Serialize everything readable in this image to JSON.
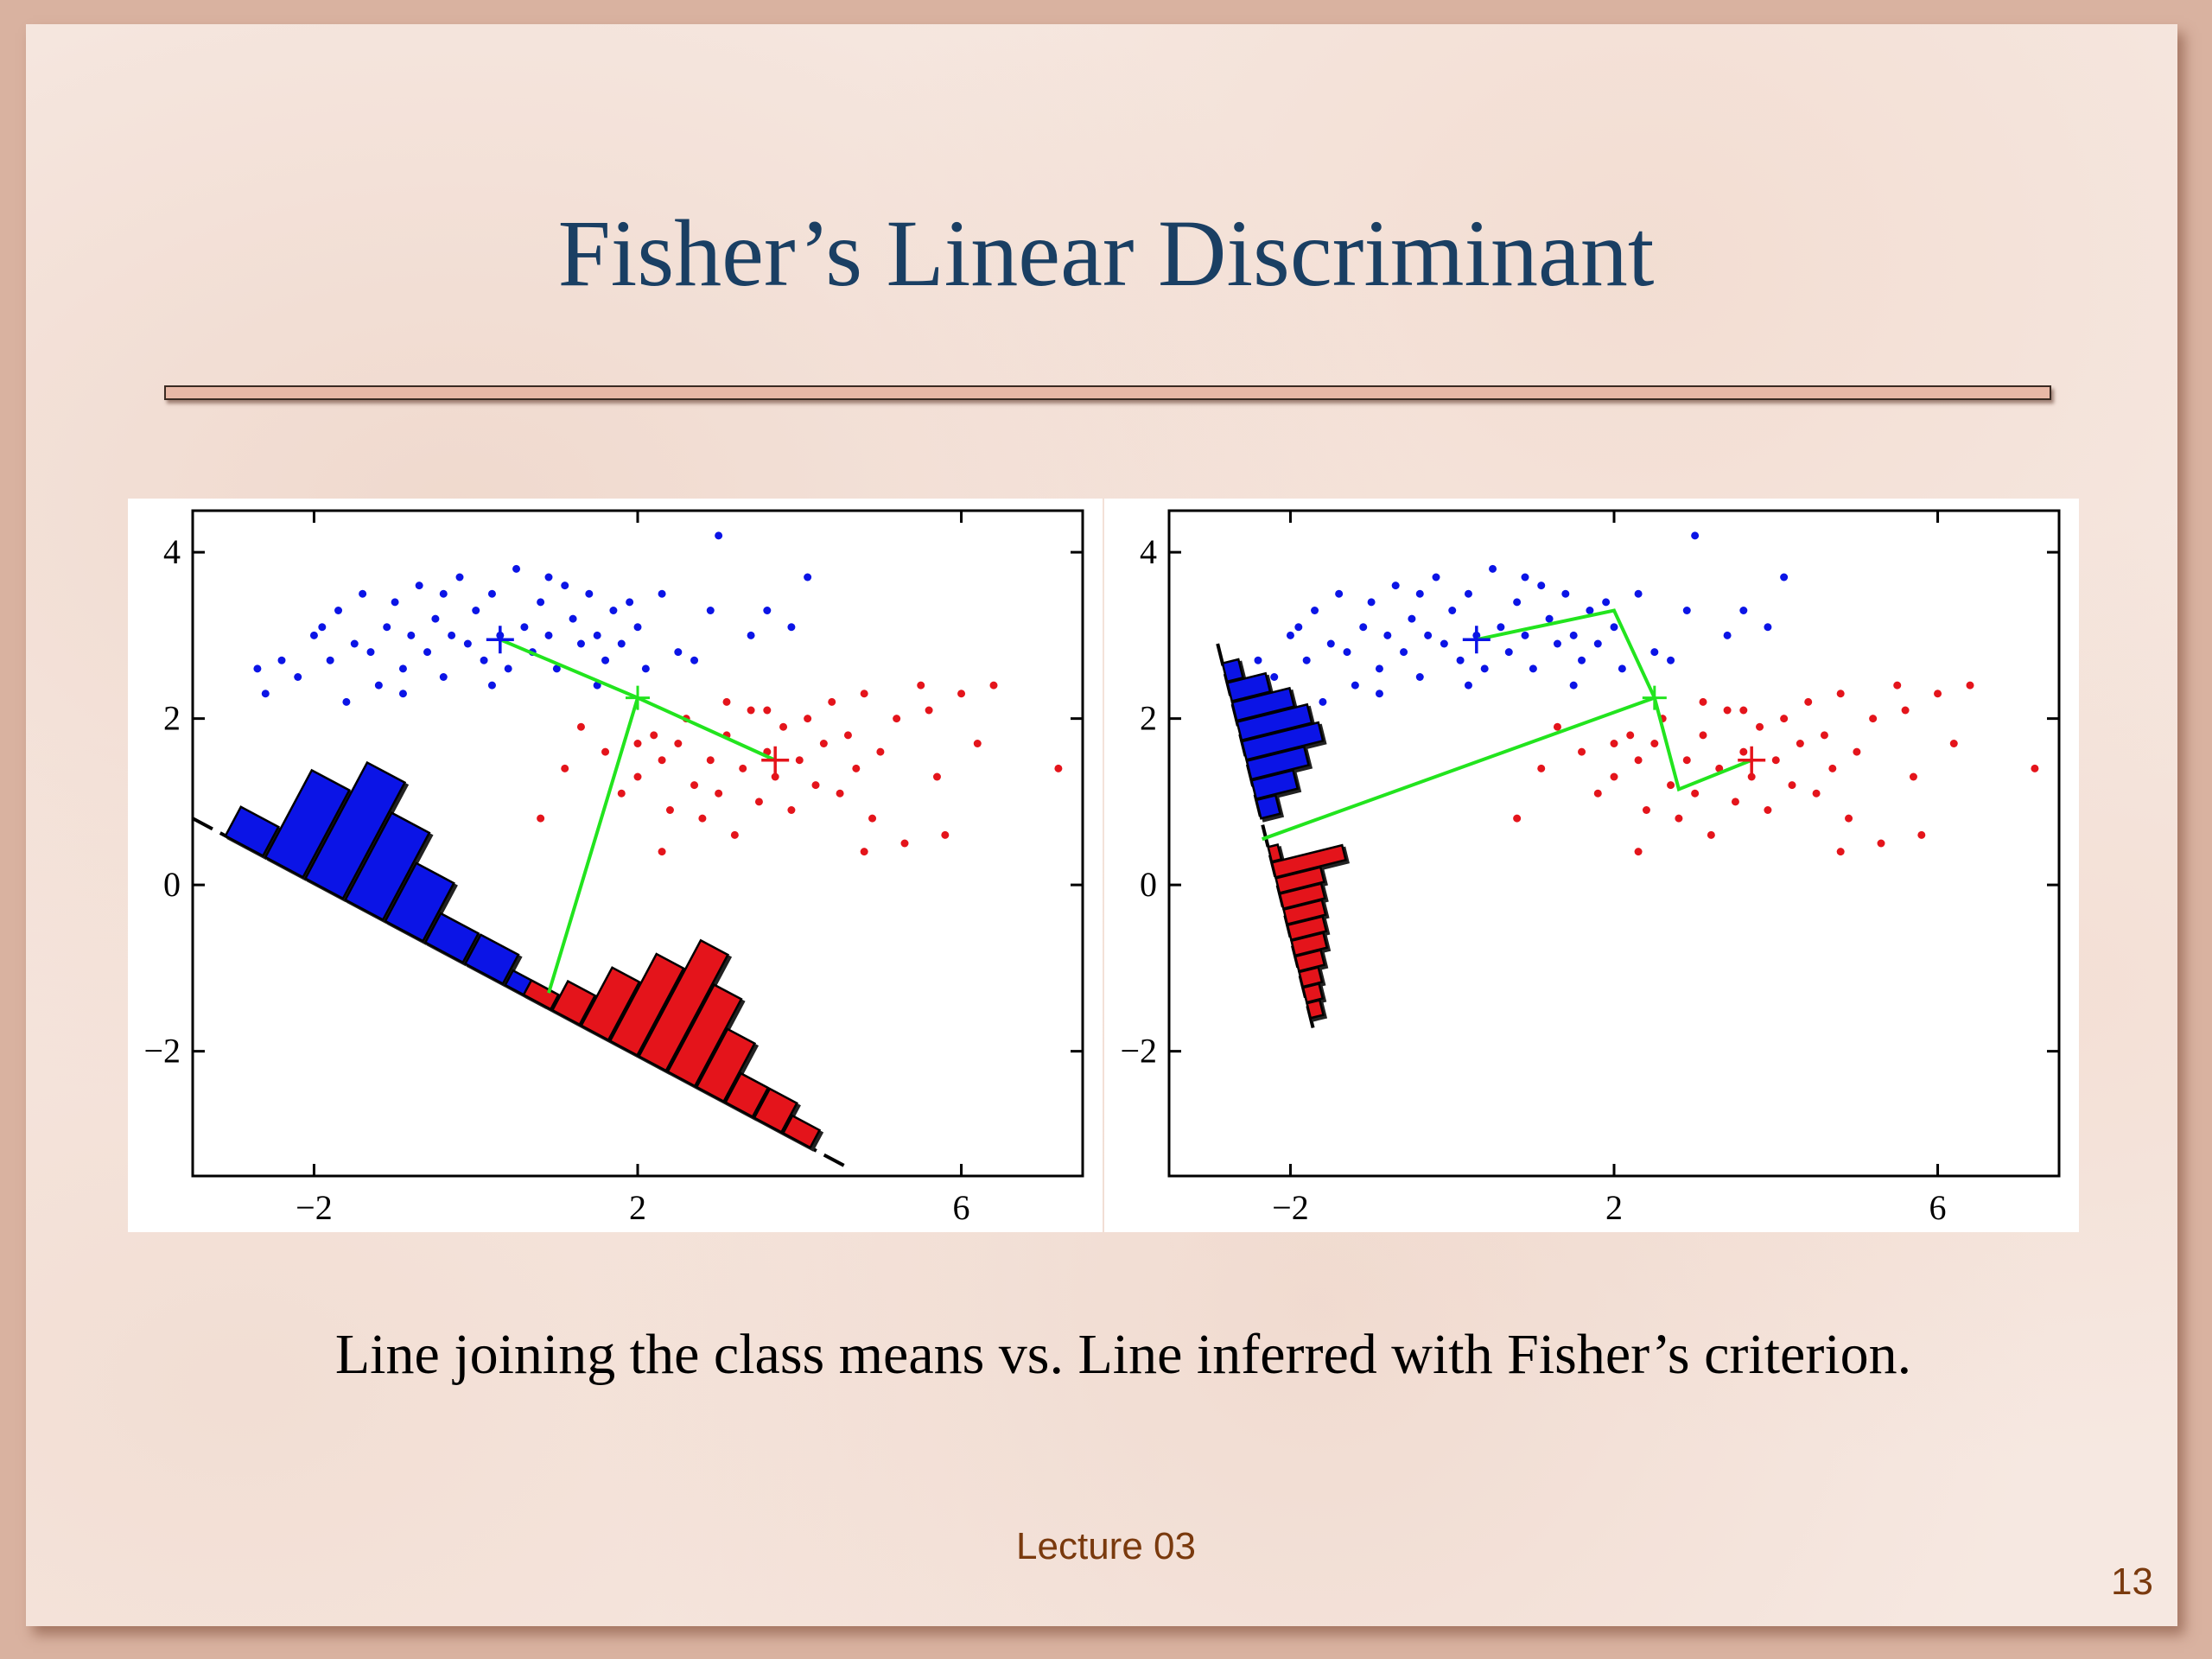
{
  "slide": {
    "title": "Fisher’s Linear Discriminant",
    "caption": "Line joining the class means vs. Line inferred with Fisher’s criterion.",
    "footer": "Lecture 03",
    "page_number": "13"
  },
  "colors": {
    "class1": "#0b14e6",
    "class2": "#e4141b",
    "projection": "#22e41e",
    "title": "#1a3f63"
  },
  "chart_data": [
    {
      "type": "scatter",
      "title": "",
      "xlabel": "",
      "ylabel": "",
      "xlim": [
        -3.5,
        7.5
      ],
      "ylim": [
        -3.5,
        4.5
      ],
      "xticks": [
        "−2",
        "2",
        "6"
      ],
      "xtick_values": [
        -2,
        2,
        6
      ],
      "yticks": [
        "4",
        "2",
        "0",
        "−2"
      ],
      "ytick_values": [
        4,
        2,
        0,
        -2
      ],
      "grid": false,
      "series": [
        {
          "points": [
            [
              -2.7,
              2.6
            ],
            [
              -2.6,
              2.3
            ],
            [
              -2.2,
              2.5
            ],
            [
              -2.0,
              3.0
            ],
            [
              -1.8,
              2.7
            ],
            [
              -1.7,
              3.3
            ],
            [
              -1.5,
              2.9
            ],
            [
              -1.4,
              3.5
            ],
            [
              -1.3,
              2.8
            ],
            [
              -1.2,
              2.4
            ],
            [
              -1.1,
              3.1
            ],
            [
              -1.0,
              3.4
            ],
            [
              -0.9,
              2.6
            ],
            [
              -0.8,
              3.0
            ],
            [
              -0.7,
              3.6
            ],
            [
              -0.6,
              2.8
            ],
            [
              -0.5,
              3.2
            ],
            [
              -0.4,
              2.5
            ],
            [
              -0.3,
              3.0
            ],
            [
              -0.2,
              3.7
            ],
            [
              -0.1,
              2.9
            ],
            [
              0.0,
              3.3
            ],
            [
              0.1,
              2.7
            ],
            [
              0.2,
              3.5
            ],
            [
              0.3,
              3.0
            ],
            [
              0.4,
              2.6
            ],
            [
              0.5,
              3.8
            ],
            [
              0.6,
              3.1
            ],
            [
              0.7,
              2.8
            ],
            [
              0.8,
              3.4
            ],
            [
              0.9,
              3.0
            ],
            [
              1.0,
              2.6
            ],
            [
              1.1,
              3.6
            ],
            [
              1.2,
              3.2
            ],
            [
              1.3,
              2.9
            ],
            [
              1.4,
              3.5
            ],
            [
              1.5,
              3.0
            ],
            [
              1.6,
              2.7
            ],
            [
              1.7,
              3.3
            ],
            [
              1.8,
              2.9
            ],
            [
              2.0,
              3.1
            ],
            [
              2.1,
              2.6
            ],
            [
              2.3,
              3.5
            ],
            [
              2.5,
              2.8
            ],
            [
              2.7,
              2.7
            ],
            [
              2.9,
              3.3
            ],
            [
              3.0,
              4.2
            ],
            [
              3.4,
              3.0
            ],
            [
              3.6,
              3.3
            ],
            [
              3.9,
              3.1
            ],
            [
              4.1,
              3.7
            ],
            [
              -1.6,
              2.2
            ],
            [
              -0.9,
              2.3
            ],
            [
              0.2,
              2.4
            ],
            [
              1.5,
              2.4
            ],
            [
              -2.4,
              2.7
            ],
            [
              -1.9,
              3.1
            ],
            [
              -0.4,
              3.5
            ],
            [
              0.9,
              3.7
            ],
            [
              1.9,
              3.4
            ]
          ]
        },
        {
          "points": [
            [
              0.8,
              0.8
            ],
            [
              1.1,
              1.4
            ],
            [
              1.3,
              1.9
            ],
            [
              1.6,
              1.6
            ],
            [
              1.8,
              1.1
            ],
            [
              2.0,
              1.3
            ],
            [
              2.2,
              1.8
            ],
            [
              2.3,
              1.5
            ],
            [
              2.4,
              0.9
            ],
            [
              2.5,
              1.7
            ],
            [
              2.6,
              2.0
            ],
            [
              2.7,
              1.2
            ],
            [
              2.8,
              0.8
            ],
            [
              2.9,
              1.5
            ],
            [
              3.0,
              1.1
            ],
            [
              3.1,
              1.8
            ],
            [
              3.2,
              0.6
            ],
            [
              3.3,
              1.4
            ],
            [
              3.4,
              2.1
            ],
            [
              3.5,
              1.0
            ],
            [
              3.6,
              1.6
            ],
            [
              3.7,
              1.3
            ],
            [
              3.8,
              1.9
            ],
            [
              3.9,
              0.9
            ],
            [
              4.0,
              1.5
            ],
            [
              4.1,
              2.0
            ],
            [
              4.2,
              1.2
            ],
            [
              4.3,
              1.7
            ],
            [
              4.4,
              2.2
            ],
            [
              4.5,
              1.1
            ],
            [
              4.6,
              1.8
            ],
            [
              4.7,
              1.4
            ],
            [
              4.8,
              2.3
            ],
            [
              4.9,
              0.8
            ],
            [
              5.0,
              1.6
            ],
            [
              5.2,
              2.0
            ],
            [
              5.3,
              0.5
            ],
            [
              5.5,
              2.4
            ],
            [
              5.7,
              1.3
            ],
            [
              5.8,
              0.6
            ],
            [
              6.0,
              2.3
            ],
            [
              6.2,
              1.7
            ],
            [
              6.4,
              2.4
            ],
            [
              7.2,
              1.4
            ],
            [
              2.3,
              0.4
            ],
            [
              3.1,
              2.2
            ],
            [
              4.8,
              0.4
            ],
            [
              5.6,
              2.1
            ],
            [
              2.0,
              1.7
            ],
            [
              3.6,
              2.1
            ]
          ]
        }
      ],
      "means": [
        [
          0.3,
          2.95
        ],
        [
          3.7,
          1.5
        ]
      ],
      "projection_line": [
        [
          -3.5,
          0.8
        ],
        [
          4.6,
          -3.4
        ]
      ],
      "projection_segments": [
        [
          [
            0.3,
            2.95
          ],
          [
            2.0,
            2.25
          ],
          [
            3.7,
            1.5
          ]
        ],
        [
          [
            2.0,
            2.25
          ],
          [
            0.9,
            -1.3
          ]
        ]
      ],
      "histograms": [
        {
          "series": 0,
          "counts": [
            1,
            3,
            4,
            3,
            2,
            1,
            1,
            0.5
          ],
          "start": 0.05,
          "step": 0.061
        },
        {
          "series": 1,
          "counts": [
            0.5,
            1,
            2,
            3,
            4,
            3,
            2,
            1,
            1,
            0.6
          ],
          "start": 0.505,
          "step": 0.044
        }
      ]
    },
    {
      "type": "scatter",
      "title": "",
      "xlabel": "",
      "ylabel": "",
      "xlim": [
        -3.5,
        7.5
      ],
      "ylim": [
        -3.5,
        4.5
      ],
      "xticks": [
        "−2",
        "2",
        "6"
      ],
      "xtick_values": [
        -2,
        2,
        6
      ],
      "yticks": [
        "4",
        "2",
        "0",
        "−2"
      ],
      "ytick_values": [
        4,
        2,
        0,
        -2
      ],
      "grid": false,
      "series": [
        {
          "points": [
            [
              -2.7,
              2.6
            ],
            [
              -2.6,
              2.3
            ],
            [
              -2.2,
              2.5
            ],
            [
              -2.0,
              3.0
            ],
            [
              -1.8,
              2.7
            ],
            [
              -1.7,
              3.3
            ],
            [
              -1.5,
              2.9
            ],
            [
              -1.4,
              3.5
            ],
            [
              -1.3,
              2.8
            ],
            [
              -1.2,
              2.4
            ],
            [
              -1.1,
              3.1
            ],
            [
              -1.0,
              3.4
            ],
            [
              -0.9,
              2.6
            ],
            [
              -0.8,
              3.0
            ],
            [
              -0.7,
              3.6
            ],
            [
              -0.6,
              2.8
            ],
            [
              -0.5,
              3.2
            ],
            [
              -0.4,
              2.5
            ],
            [
              -0.3,
              3.0
            ],
            [
              -0.2,
              3.7
            ],
            [
              -0.1,
              2.9
            ],
            [
              0.0,
              3.3
            ],
            [
              0.1,
              2.7
            ],
            [
              0.2,
              3.5
            ],
            [
              0.3,
              3.0
            ],
            [
              0.4,
              2.6
            ],
            [
              0.5,
              3.8
            ],
            [
              0.6,
              3.1
            ],
            [
              0.7,
              2.8
            ],
            [
              0.8,
              3.4
            ],
            [
              0.9,
              3.0
            ],
            [
              1.0,
              2.6
            ],
            [
              1.1,
              3.6
            ],
            [
              1.2,
              3.2
            ],
            [
              1.3,
              2.9
            ],
            [
              1.4,
              3.5
            ],
            [
              1.5,
              3.0
            ],
            [
              1.6,
              2.7
            ],
            [
              1.7,
              3.3
            ],
            [
              1.8,
              2.9
            ],
            [
              2.0,
              3.1
            ],
            [
              2.1,
              2.6
            ],
            [
              2.3,
              3.5
            ],
            [
              2.5,
              2.8
            ],
            [
              2.7,
              2.7
            ],
            [
              2.9,
              3.3
            ],
            [
              3.0,
              4.2
            ],
            [
              3.4,
              3.0
            ],
            [
              3.6,
              3.3
            ],
            [
              3.9,
              3.1
            ],
            [
              4.1,
              3.7
            ],
            [
              -1.6,
              2.2
            ],
            [
              -0.9,
              2.3
            ],
            [
              0.2,
              2.4
            ],
            [
              1.5,
              2.4
            ],
            [
              -2.4,
              2.7
            ],
            [
              -1.9,
              3.1
            ],
            [
              -0.4,
              3.5
            ],
            [
              0.9,
              3.7
            ],
            [
              1.9,
              3.4
            ]
          ]
        },
        {
          "points": [
            [
              0.8,
              0.8
            ],
            [
              1.1,
              1.4
            ],
            [
              1.3,
              1.9
            ],
            [
              1.6,
              1.6
            ],
            [
              1.8,
              1.1
            ],
            [
              2.0,
              1.3
            ],
            [
              2.2,
              1.8
            ],
            [
              2.3,
              1.5
            ],
            [
              2.4,
              0.9
            ],
            [
              2.5,
              1.7
            ],
            [
              2.6,
              2.0
            ],
            [
              2.7,
              1.2
            ],
            [
              2.8,
              0.8
            ],
            [
              2.9,
              1.5
            ],
            [
              3.0,
              1.1
            ],
            [
              3.1,
              1.8
            ],
            [
              3.2,
              0.6
            ],
            [
              3.3,
              1.4
            ],
            [
              3.4,
              2.1
            ],
            [
              3.5,
              1.0
            ],
            [
              3.6,
              1.6
            ],
            [
              3.7,
              1.3
            ],
            [
              3.8,
              1.9
            ],
            [
              3.9,
              0.9
            ],
            [
              4.0,
              1.5
            ],
            [
              4.1,
              2.0
            ],
            [
              4.2,
              1.2
            ],
            [
              4.3,
              1.7
            ],
            [
              4.4,
              2.2
            ],
            [
              4.5,
              1.1
            ],
            [
              4.6,
              1.8
            ],
            [
              4.7,
              1.4
            ],
            [
              4.8,
              2.3
            ],
            [
              4.9,
              0.8
            ],
            [
              5.0,
              1.6
            ],
            [
              5.2,
              2.0
            ],
            [
              5.3,
              0.5
            ],
            [
              5.5,
              2.4
            ],
            [
              5.7,
              1.3
            ],
            [
              5.8,
              0.6
            ],
            [
              6.0,
              2.3
            ],
            [
              6.2,
              1.7
            ],
            [
              6.4,
              2.4
            ],
            [
              7.2,
              1.4
            ],
            [
              2.3,
              0.4
            ],
            [
              3.1,
              2.2
            ],
            [
              4.8,
              0.4
            ],
            [
              5.6,
              2.1
            ],
            [
              2.0,
              1.7
            ],
            [
              3.6,
              2.1
            ]
          ]
        }
      ],
      "means": [
        [
          0.3,
          2.95
        ],
        [
          3.7,
          1.5
        ]
      ],
      "projection_line": [
        [
          -2.9,
          2.9
        ],
        [
          -1.7,
          -1.8
        ]
      ],
      "projection_segments": [
        [
          [
            0.3,
            2.95
          ],
          [
            2.0,
            3.3
          ],
          [
            2.5,
            2.25
          ],
          [
            2.8,
            1.15
          ],
          [
            3.7,
            1.5
          ]
        ],
        [
          [
            2.5,
            2.25
          ],
          [
            -2.35,
            0.55
          ]
        ]
      ],
      "histograms": [
        {
          "series": 0,
          "counts": [
            0.5,
            1.2,
            1.8,
            2.2,
            2.4,
            1.8,
            1.3,
            0.6
          ],
          "start": 0.05,
          "step": 0.05
        },
        {
          "series": 1,
          "counts": [
            0.3,
            2.2,
            1.4,
            1.3,
            1.2,
            1.1,
            1.0,
            0.8,
            0.6,
            0.5,
            0.4
          ],
          "start": 0.52,
          "step": 0.04
        }
      ]
    }
  ]
}
